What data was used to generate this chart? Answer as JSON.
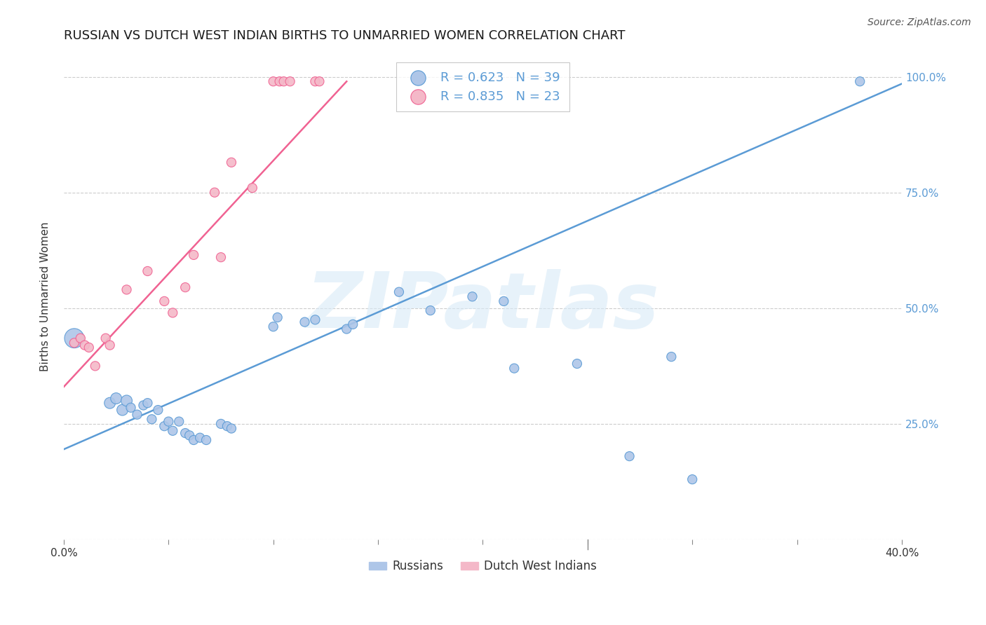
{
  "title": "RUSSIAN VS DUTCH WEST INDIAN BIRTHS TO UNMARRIED WOMEN CORRELATION CHART",
  "source": "Source: ZipAtlas.com",
  "ylabel": "Births to Unmarried Women",
  "legend_entries": [
    {
      "label": "Russians",
      "R": "0.623",
      "N": "39"
    },
    {
      "label": "Dutch West Indians",
      "R": "0.835",
      "N": "23"
    }
  ],
  "russian_scatter": [
    [
      0.005,
      0.435
    ],
    [
      0.022,
      0.295
    ],
    [
      0.025,
      0.305
    ],
    [
      0.028,
      0.28
    ],
    [
      0.03,
      0.3
    ],
    [
      0.032,
      0.285
    ],
    [
      0.035,
      0.27
    ],
    [
      0.038,
      0.29
    ],
    [
      0.04,
      0.295
    ],
    [
      0.042,
      0.26
    ],
    [
      0.045,
      0.28
    ],
    [
      0.048,
      0.245
    ],
    [
      0.05,
      0.255
    ],
    [
      0.052,
      0.235
    ],
    [
      0.055,
      0.255
    ],
    [
      0.058,
      0.23
    ],
    [
      0.06,
      0.225
    ],
    [
      0.062,
      0.215
    ],
    [
      0.065,
      0.22
    ],
    [
      0.068,
      0.215
    ],
    [
      0.075,
      0.25
    ],
    [
      0.078,
      0.245
    ],
    [
      0.08,
      0.24
    ],
    [
      0.1,
      0.46
    ],
    [
      0.102,
      0.48
    ],
    [
      0.115,
      0.47
    ],
    [
      0.12,
      0.475
    ],
    [
      0.135,
      0.455
    ],
    [
      0.138,
      0.465
    ],
    [
      0.16,
      0.535
    ],
    [
      0.175,
      0.495
    ],
    [
      0.195,
      0.525
    ],
    [
      0.21,
      0.515
    ],
    [
      0.215,
      0.37
    ],
    [
      0.245,
      0.38
    ],
    [
      0.27,
      0.18
    ],
    [
      0.29,
      0.395
    ],
    [
      0.3,
      0.13
    ],
    [
      0.38,
      0.99
    ]
  ],
  "dutch_scatter": [
    [
      0.005,
      0.425
    ],
    [
      0.008,
      0.435
    ],
    [
      0.01,
      0.42
    ],
    [
      0.012,
      0.415
    ],
    [
      0.015,
      0.375
    ],
    [
      0.02,
      0.435
    ],
    [
      0.022,
      0.42
    ],
    [
      0.03,
      0.54
    ],
    [
      0.04,
      0.58
    ],
    [
      0.048,
      0.515
    ],
    [
      0.052,
      0.49
    ],
    [
      0.058,
      0.545
    ],
    [
      0.062,
      0.615
    ],
    [
      0.072,
      0.75
    ],
    [
      0.075,
      0.61
    ],
    [
      0.08,
      0.815
    ],
    [
      0.09,
      0.76
    ],
    [
      0.1,
      0.99
    ],
    [
      0.103,
      0.99
    ],
    [
      0.105,
      0.99
    ],
    [
      0.108,
      0.99
    ],
    [
      0.12,
      0.99
    ],
    [
      0.122,
      0.99
    ]
  ],
  "russian_line": [
    [
      0.0,
      0.195
    ],
    [
      0.4,
      0.985
    ]
  ],
  "dutch_line": [
    [
      0.0,
      0.33
    ],
    [
      0.135,
      0.99
    ]
  ],
  "russian_color": "#5b9bd5",
  "dutch_color": "#f06292",
  "russian_scatter_color": "#aec6e8",
  "dutch_scatter_color": "#f4b8c8",
  "xmin": 0.0,
  "xmax": 0.4,
  "ymin": 0.0,
  "ymax": 1.05,
  "background_color": "#ffffff",
  "watermark": "ZIPatlas",
  "title_fontsize": 13,
  "source_fontsize": 10,
  "xtick_positions": [
    0.0,
    0.05,
    0.1,
    0.15,
    0.2,
    0.25,
    0.3,
    0.35,
    0.4
  ],
  "ytick_positions": [
    0.0,
    0.25,
    0.5,
    0.75,
    1.0
  ]
}
